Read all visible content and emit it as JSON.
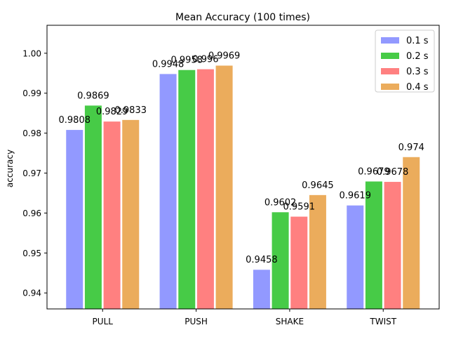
{
  "chart_data": {
    "type": "bar",
    "title": "Mean Accuracy (100 times)",
    "xlabel": "",
    "ylabel": "accuracy",
    "categories": [
      "PULL",
      "PUSH",
      "SHAKE",
      "TWIST"
    ],
    "ylim": [
      0.936,
      1.007
    ],
    "yticks": [
      0.94,
      0.95,
      0.96,
      0.97,
      0.98,
      0.99,
      1.0
    ],
    "ytick_labels": [
      "0.94",
      "0.95",
      "0.96",
      "0.97",
      "0.98",
      "0.99",
      "1.00"
    ],
    "grid": false,
    "legend_position": "top-right",
    "series": [
      {
        "name": "0.1 s",
        "color": "#9299ff",
        "values": [
          0.9808,
          0.9948,
          0.9458,
          0.9619
        ],
        "labels": [
          "0.9808",
          "0.9948",
          "0.9458",
          "0.9619"
        ]
      },
      {
        "name": "0.2 s",
        "color": "#47cb47",
        "values": [
          0.9869,
          0.9958,
          0.9602,
          0.9679
        ],
        "labels": [
          "0.9869",
          "0.9958",
          "0.9602",
          "0.9679"
        ]
      },
      {
        "name": "0.3 s",
        "color": "#ff8080",
        "values": [
          0.9829,
          0.996,
          0.9591,
          0.9678
        ],
        "labels": [
          "0.9829",
          "0.996",
          "0.9591",
          "0.9678"
        ]
      },
      {
        "name": "0.4 s",
        "color": "#ebac5c",
        "values": [
          0.9833,
          0.9969,
          0.9645,
          0.974
        ],
        "labels": [
          "0.9833",
          "0.9969",
          "0.9645",
          "0.974"
        ]
      }
    ]
  }
}
